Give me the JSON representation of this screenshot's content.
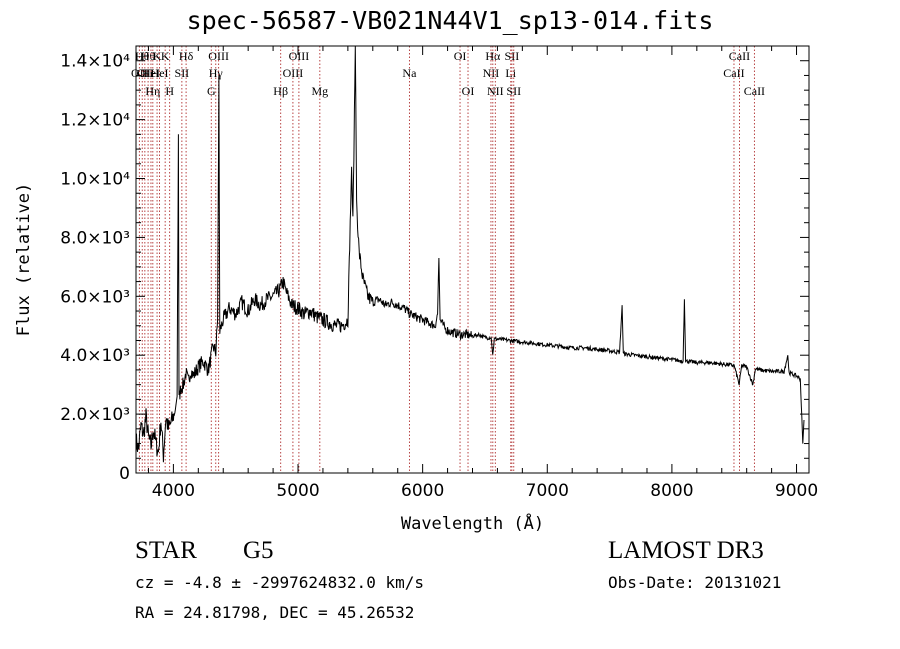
{
  "chart_data": {
    "type": "line",
    "title": "spec-56587-VB021N44V1_sp13-014.fits",
    "xlabel": "Wavelength (Å)",
    "ylabel": "Flux (relative)",
    "xlim": [
      3700,
      9100
    ],
    "ylim": [
      0,
      14500
    ],
    "x_ticks": [
      4000,
      5000,
      6000,
      7000,
      8000,
      9000
    ],
    "x_minor_step": 200,
    "y_ticks": [
      {
        "value": 0,
        "label": "0"
      },
      {
        "value": 2000,
        "label": "2.0×10³"
      },
      {
        "value": 4000,
        "label": "4.0×10³"
      },
      {
        "value": 6000,
        "label": "6.0×10³"
      },
      {
        "value": 8000,
        "label": "8.0×10³"
      },
      {
        "value": 10000,
        "label": "1.0×10⁴"
      },
      {
        "value": 12000,
        "label": "1.2×10⁴"
      },
      {
        "value": 14000,
        "label": "1.4×10⁴"
      }
    ],
    "y_minor_step": 500,
    "series": [
      {
        "name": "flux",
        "anchors": [
          [
            3700,
            1100
          ],
          [
            3720,
            800
          ],
          [
            3740,
            1600
          ],
          [
            3760,
            1300
          ],
          [
            3780,
            1900
          ],
          [
            3800,
            1200
          ],
          [
            3820,
            900
          ],
          [
            3840,
            1500
          ],
          [
            3860,
            1000
          ],
          [
            3880,
            700
          ],
          [
            3900,
            1800
          ],
          [
            3920,
            600
          ],
          [
            3940,
            1900
          ],
          [
            3960,
            1500
          ],
          [
            3980,
            1700
          ],
          [
            4000,
            1900
          ],
          [
            4020,
            2300
          ],
          [
            4030,
            2600
          ],
          [
            4040,
            11500
          ],
          [
            4045,
            2500
          ],
          [
            4060,
            2900
          ],
          [
            4080,
            3000
          ],
          [
            4100,
            3400
          ],
          [
            4120,
            3100
          ],
          [
            4140,
            3500
          ],
          [
            4160,
            3300
          ],
          [
            4200,
            3600
          ],
          [
            4240,
            3800
          ],
          [
            4280,
            3500
          ],
          [
            4300,
            3900
          ],
          [
            4320,
            4300
          ],
          [
            4340,
            4100
          ],
          [
            4355,
            5200
          ],
          [
            4365,
            13500
          ],
          [
            4372,
            4800
          ],
          [
            4400,
            5200
          ],
          [
            4450,
            5600
          ],
          [
            4500,
            5400
          ],
          [
            4550,
            5800
          ],
          [
            4600,
            5500
          ],
          [
            4650,
            5900
          ],
          [
            4700,
            5700
          ],
          [
            4750,
            5900
          ],
          [
            4800,
            6000
          ],
          [
            4850,
            6200
          ],
          [
            4880,
            6500
          ],
          [
            4900,
            6200
          ],
          [
            4950,
            5700
          ],
          [
            5000,
            5600
          ],
          [
            5050,
            5400
          ],
          [
            5100,
            5500
          ],
          [
            5150,
            5300
          ],
          [
            5200,
            5200
          ],
          [
            5250,
            5100
          ],
          [
            5300,
            5000
          ],
          [
            5350,
            5000
          ],
          [
            5400,
            5200
          ],
          [
            5430,
            10400
          ],
          [
            5440,
            8500
          ],
          [
            5460,
            14500
          ],
          [
            5470,
            9200
          ],
          [
            5490,
            7500
          ],
          [
            5520,
            6600
          ],
          [
            5560,
            6000
          ],
          [
            5600,
            5800
          ],
          [
            5650,
            5900
          ],
          [
            5700,
            5700
          ],
          [
            5750,
            5800
          ],
          [
            5800,
            5700
          ],
          [
            5850,
            5600
          ],
          [
            5900,
            5400
          ],
          [
            5950,
            5300
          ],
          [
            6000,
            5200
          ],
          [
            6050,
            5100
          ],
          [
            6100,
            5000
          ],
          [
            6120,
            5400
          ],
          [
            6130,
            7300
          ],
          [
            6140,
            5200
          ],
          [
            6180,
            4900
          ],
          [
            6220,
            4800
          ],
          [
            6260,
            4750
          ],
          [
            6300,
            4700
          ],
          [
            6350,
            4700
          ],
          [
            6400,
            4650
          ],
          [
            6450,
            4700
          ],
          [
            6500,
            4600
          ],
          [
            6550,
            4600
          ],
          [
            6562,
            4000
          ],
          [
            6575,
            4550
          ],
          [
            6600,
            4550
          ],
          [
            6700,
            4500
          ],
          [
            6800,
            4450
          ],
          [
            6900,
            4400
          ],
          [
            7000,
            4350
          ],
          [
            7100,
            4300
          ],
          [
            7200,
            4250
          ],
          [
            7300,
            4250
          ],
          [
            7400,
            4200
          ],
          [
            7500,
            4150
          ],
          [
            7580,
            4100
          ],
          [
            7600,
            5700
          ],
          [
            7610,
            4050
          ],
          [
            7700,
            4000
          ],
          [
            7800,
            3950
          ],
          [
            7900,
            3900
          ],
          [
            8000,
            3850
          ],
          [
            8090,
            3800
          ],
          [
            8100,
            5900
          ],
          [
            8110,
            3800
          ],
          [
            8200,
            3750
          ],
          [
            8300,
            3750
          ],
          [
            8400,
            3700
          ],
          [
            8500,
            3650
          ],
          [
            8540,
            3000
          ],
          [
            8560,
            3650
          ],
          [
            8600,
            3600
          ],
          [
            8650,
            3000
          ],
          [
            8670,
            3550
          ],
          [
            8700,
            3500
          ],
          [
            8800,
            3450
          ],
          [
            8900,
            3450
          ],
          [
            8930,
            4000
          ],
          [
            8940,
            3400
          ],
          [
            9000,
            3300
          ],
          [
            9030,
            3200
          ],
          [
            9050,
            1000
          ],
          [
            9060,
            1800
          ]
        ]
      }
    ],
    "lines": [
      {
        "wl": 3727,
        "label": "OII",
        "row": 2
      },
      {
        "wl": 3750,
        "label": "Hθ",
        "row": 1
      },
      {
        "wl": 3771,
        "label": "OII",
        "row": 2
      },
      {
        "wl": 3797,
        "label": "Hθ",
        "row": 1
      },
      {
        "wl": 3820,
        "label": "HeI",
        "row": 2
      },
      {
        "wl": 3835,
        "label": "Hη",
        "row": 3
      },
      {
        "wl": 3869,
        "label": "K",
        "row": 1
      },
      {
        "wl": 3889,
        "label": "HeI",
        "row": 2
      },
      {
        "wl": 3934,
        "label": "K",
        "row": 1
      },
      {
        "wl": 3970,
        "label": "H",
        "row": 3
      },
      {
        "wl": 4068,
        "label": "SII",
        "row": 2
      },
      {
        "wl": 4102,
        "label": "Hδ",
        "row": 1
      },
      {
        "wl": 4304,
        "label": "G",
        "row": 3
      },
      {
        "wl": 4340,
        "label": "Hγ",
        "row": 2
      },
      {
        "wl": 4363,
        "label": "OIII",
        "row": 1
      },
      {
        "wl": 4861,
        "label": "Hβ",
        "row": 3
      },
      {
        "wl": 4959,
        "label": "OIII",
        "row": 2
      },
      {
        "wl": 5007,
        "label": "OIII",
        "row": 1
      },
      {
        "wl": 5175,
        "label": "Mg",
        "row": 3
      },
      {
        "wl": 5894,
        "label": "Na",
        "row": 2
      },
      {
        "wl": 6300,
        "label": "OI",
        "row": 1
      },
      {
        "wl": 6364,
        "label": "OI",
        "row": 3
      },
      {
        "wl": 6548,
        "label": "NII",
        "row": 2
      },
      {
        "wl": 6563,
        "label": "Hα",
        "row": 1
      },
      {
        "wl": 6583,
        "label": "NII",
        "row": 3
      },
      {
        "wl": 6707,
        "label": "Li",
        "row": 2
      },
      {
        "wl": 6716,
        "label": "SII",
        "row": 1
      },
      {
        "wl": 6731,
        "label": "SII",
        "row": 3
      },
      {
        "wl": 8498,
        "label": "CaII",
        "row": 2
      },
      {
        "wl": 8542,
        "label": "CaII",
        "row": 1
      },
      {
        "wl": 8662,
        "label": "CaII",
        "row": 3
      }
    ]
  },
  "info": {
    "class_label": "STAR",
    "subclass": "G5",
    "survey": "LAMOST DR3",
    "cz_line": "cz = -4.8 ± -2997624832.0 km/s",
    "obs_date_line": "Obs-Date: 20131021",
    "coords_line": "RA =  24.81798, DEC =  45.26532"
  }
}
